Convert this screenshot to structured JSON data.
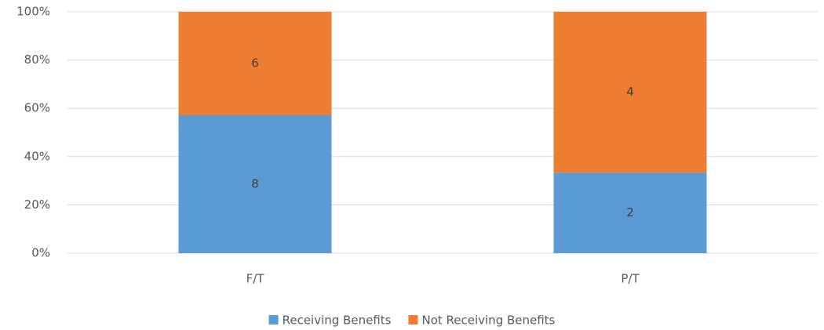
{
  "chart_data": {
    "type": "bar",
    "stacking": "percent",
    "categories": [
      "F/T",
      "P/T"
    ],
    "series": [
      {
        "name": "Receiving Benefits",
        "color": "#5b9bd5",
        "values": [
          8,
          2
        ]
      },
      {
        "name": "Not Receiving Benefits",
        "color": "#ed7d31",
        "values": [
          6,
          4
        ]
      }
    ],
    "ylim": [
      0,
      100
    ],
    "yticks": [
      {
        "value": 0,
        "label": "0%"
      },
      {
        "value": 20,
        "label": "20%"
      },
      {
        "value": 40,
        "label": "40%"
      },
      {
        "value": 60,
        "label": "60%"
      },
      {
        "value": 80,
        "label": "80%"
      },
      {
        "value": 100,
        "label": "100%"
      }
    ],
    "grid": true,
    "legend": "bottom"
  }
}
